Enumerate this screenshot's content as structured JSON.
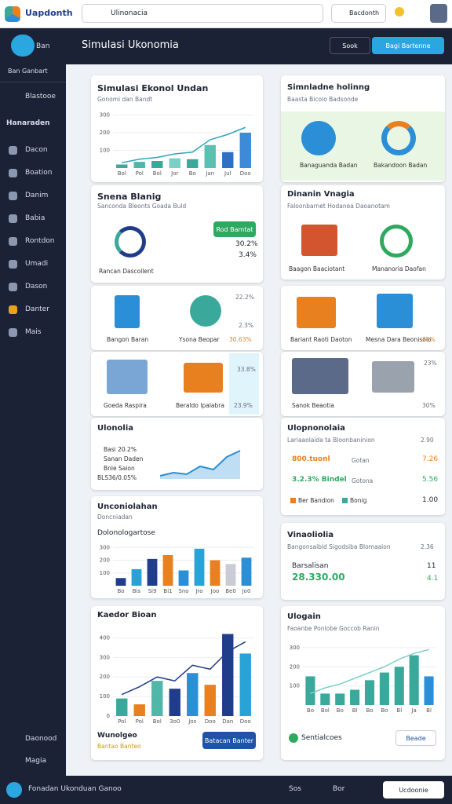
{
  "topbar": {
    "logo": "Uapdonth",
    "search": "Ulinonacia",
    "account": "Bacdonth"
  },
  "sidebar": {
    "brand": "Ban",
    "subtitle": "Ban Ganbart",
    "first": "Blastooe",
    "section": "Hanaraden",
    "items": [
      "Dacon",
      "Boation",
      "Danim",
      "Babia",
      "Rontdon",
      "Umadi",
      "Dason",
      "Danter",
      "Mais"
    ],
    "bottom": [
      "Daonood",
      "Magia"
    ]
  },
  "header": {
    "title": "Simulasi Ukonomia",
    "buttons": [
      "Sook",
      "Bagi Bartenne"
    ]
  },
  "cards": {
    "trend": {
      "title": "Simulasi Ekonol Undan",
      "subtitle": "Gonomi dan Bandt",
      "chart": {
        "type": "bar",
        "categories": [
          "Bol",
          "Pol",
          "Bol",
          "Jor",
          "Bo",
          "Jan",
          "Jul",
          "Doo"
        ],
        "ylim": [
          0,
          320
        ],
        "yticks": [
          100,
          200,
          300
        ],
        "series": [
          {
            "type": "bar",
            "colors": [
              "#3aa89a",
              "#4fb6a8",
              "#3aa89a",
              "#7ccfc4",
              "#3aa89a",
              "#5bbfb2",
              "#2f6fc4",
              "#3f8ad6"
            ],
            "values": [
              20,
              35,
              40,
              55,
              50,
              130,
              90,
              200
            ]
          },
          {
            "type": "line",
            "color": "#2aa7b8",
            "values": [
              30,
              50,
              60,
              80,
              90,
              160,
              190,
              230
            ]
          }
        ]
      }
    },
    "gauge": {
      "title": "Snena Blanig",
      "subtitle": "Sanconda Bleonts Goada Buld",
      "caption": "Rancan Dascollent",
      "button": "Rod Bamtat",
      "stats": [
        "30.2%",
        "3.4%"
      ]
    },
    "icons1": {
      "labels": [
        "Bangon Baran",
        "Ysona Beopar"
      ],
      "stats": [
        "22.2%",
        "2.3%",
        "30.63%"
      ]
    },
    "icons2": {
      "labels": [
        "Goeda Raspira",
        "Beraldo Ipalabra"
      ],
      "stats": [
        "33.8%",
        "23.9%"
      ]
    },
    "lineCard": {
      "title": "Ulonolia",
      "legend": [
        "Basi 20.2%",
        "Sanan Daden",
        "Bnle Saion",
        "BLS36/0.05%"
      ],
      "chart": {
        "type": "line",
        "ylim": [
          0,
          100
        ],
        "color": "#2a8fd6",
        "values": [
          10,
          20,
          15,
          40,
          30,
          70,
          90
        ]
      }
    },
    "barCard": {
      "title": "Unconiolahan",
      "subtitle": "Doncniadan",
      "chartTitle": "Dolonologartose",
      "chart": {
        "type": "bar",
        "categories": [
          "Bo",
          "Bis",
          "Si9",
          "Bi1",
          "Sno",
          "Jro",
          "Joo",
          "Be0",
          "Jo0"
        ],
        "ylim": [
          0,
          320
        ],
        "yticks": [
          100,
          200,
          300
        ],
        "series": [
          {
            "type": "bar",
            "colors": [
              "#1f3d8a",
              "#29a3d6",
              "#1f3d8a",
              "#e8801f",
              "#2a8fd6",
              "#29a3d6",
              "#e8801f",
              "#c9ccd4",
              "#2a8fd6"
            ],
            "values": [
              60,
              130,
              210,
              240,
              120,
              290,
              200,
              170,
              220
            ]
          }
        ]
      }
    },
    "mixCard": {
      "title": "Kaedor Bioan",
      "note": "Wunolgeo",
      "sub": "Bantao Banteo",
      "button": "Batacan Banter",
      "chart": {
        "type": "bar",
        "categories": [
          "Pol",
          "Pol",
          "Bol",
          "3o0",
          "Jos",
          "Doo",
          "Dan",
          "Doo"
        ],
        "ylim": [
          0,
          450
        ],
        "yticks": [
          0,
          100,
          200,
          300,
          400
        ],
        "series": [
          {
            "type": "bar",
            "colors": [
              "#3aa89a",
              "#e8801f",
              "#4fb6a8",
              "#1f3d8a",
              "#2a8fd6",
              "#e8801f",
              "#1f3d8a",
              "#29a3d6"
            ],
            "values": [
              90,
              60,
              180,
              140,
              220,
              160,
              420,
              320
            ]
          },
          {
            "type": "line",
            "color": "#1f3d8a",
            "values": [
              110,
              150,
              200,
              180,
              260,
              240,
              330,
              380
            ]
          }
        ]
      }
    },
    "overview": {
      "title": "Simnladne holinng",
      "subtitle": "Baasta Bicolo Badsonde",
      "labels": [
        "Banaguanda Badan",
        "Bakandoon Badan"
      ]
    },
    "homes": {
      "title": "Dinanin Vnagia",
      "subtitle": "Faloonbarnet Hodanea Daoanotam",
      "labels": [
        "Baagon Baaciotant",
        "Mananoria Daofan"
      ]
    },
    "icons3": {
      "labels": [
        "Bariant Raoti Daoton",
        "Mesna Dara Beonisolo"
      ],
      "stats": [
        "25%"
      ]
    },
    "icons4": {
      "labels": [
        "Sanok Beaotia"
      ],
      "stats": [
        "23%",
        "30%"
      ]
    },
    "stats": {
      "title": "Ulopnonolaia",
      "subtitle": "Lariaaolaida ta Bloonbaninion",
      "top": "2.90",
      "rows": [
        [
          "800.tuonl",
          "Gotan",
          "7.26"
        ],
        [
          "3.2.3% Bindel",
          "Gotona",
          "5.56"
        ]
      ],
      "legend": [
        "Ber Bandion",
        "Bonig"
      ],
      "total": "1.00"
    },
    "summary": {
      "title": "Vinaoliolia",
      "subtitle": "Bangonsaibid Sigodsiba Blomaaion",
      "side": "2.36",
      "label": "Barsalisan",
      "value": "28.330.00",
      "numbers": [
        "11",
        "4.1"
      ]
    },
    "trend2": {
      "title": "Ulogain",
      "subtitle": "Faoanbe Ponlobe Goccob Ranin",
      "footer": "Sentialcoes",
      "button": "Beade",
      "chart": {
        "type": "bar",
        "categories": [
          "Bo",
          "Bol",
          "Bo",
          "Bl",
          "Bo",
          "Bo",
          "Bl",
          "Ja",
          "Bl"
        ],
        "ylim": [
          0,
          320
        ],
        "yticks": [
          100,
          200,
          300
        ],
        "series": [
          {
            "type": "bar",
            "colors": [
              "#3aa89a",
              "#3aa89a",
              "#3aa89a",
              "#3aa89a",
              "#3aa89a",
              "#3aa89a",
              "#3aa89a",
              "#3aa89a",
              "#2a8fd6"
            ],
            "values": [
              150,
              60,
              60,
              80,
              130,
              170,
              200,
              260,
              150
            ]
          },
          {
            "type": "line",
            "color": "#7ccfc4",
            "values": [
              60,
              90,
              110,
              140,
              170,
              200,
              240,
              270,
              290
            ]
          }
        ]
      }
    }
  },
  "footer": {
    "text": "Fonadan Ukonduan Ganoo",
    "items": [
      "Sos",
      "Bor"
    ],
    "button": "Ucdoonie"
  }
}
